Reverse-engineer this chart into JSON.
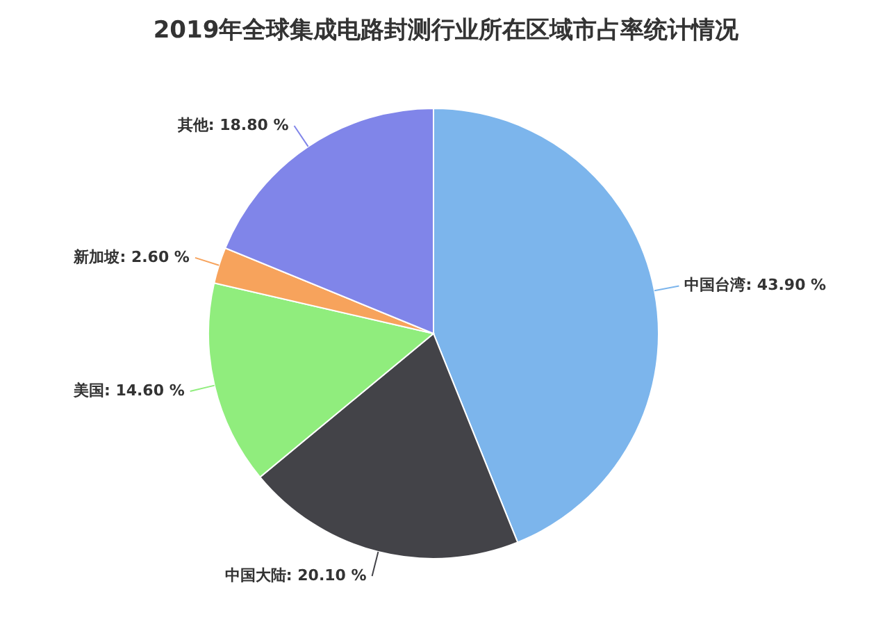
{
  "chart_data": {
    "type": "pie",
    "title": "2019年全球集成电路封测行业所在区域市占率统计情况",
    "categories": [
      "中国台湾",
      "中国大陆",
      "美国",
      "新加坡",
      "其他"
    ],
    "values": [
      43.9,
      20.1,
      14.6,
      2.6,
      18.8
    ],
    "value_labels": [
      "43.90 %",
      "20.10 %",
      "14.60 %",
      "2.60 %",
      "18.80 %"
    ],
    "colors": [
      "#7cb5ec",
      "#434348",
      "#90ed7d",
      "#f7a35c",
      "#8085e9"
    ]
  }
}
